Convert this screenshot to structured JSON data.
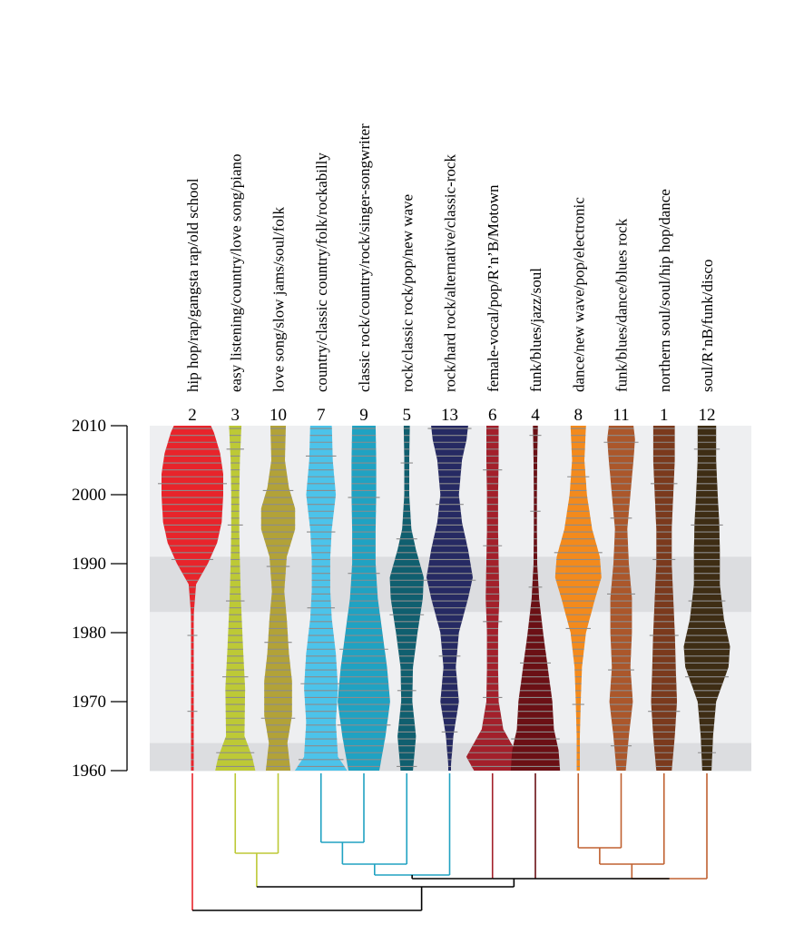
{
  "chart_data": {
    "type": "violin",
    "yticks": [
      1960,
      1970,
      1980,
      1990,
      2000,
      2010
    ],
    "ylim": [
      1960,
      2010
    ],
    "bands": [
      [
        1983,
        1991
      ],
      [
        1960,
        1964
      ]
    ],
    "series": [
      {
        "label": "hip hop/rap/gangsta rap/old school",
        "cluster": "2",
        "color": "#e8242b",
        "profile": [
          [
            1960,
            0.02
          ],
          [
            1970,
            0.03
          ],
          [
            1978,
            0.03
          ],
          [
            1983,
            0.05
          ],
          [
            1987,
            0.12
          ],
          [
            1990,
            0.5
          ],
          [
            1993,
            0.8
          ],
          [
            1996,
            0.95
          ],
          [
            2000,
            1.0
          ],
          [
            2003,
            1.0
          ],
          [
            2006,
            0.9
          ],
          [
            2009,
            0.7
          ],
          [
            2010,
            0.6
          ]
        ]
      },
      {
        "label": "easy listening/country/love song/piano",
        "cluster": "3",
        "color": "#bdc936",
        "profile": [
          [
            1960,
            0.65
          ],
          [
            1962,
            0.55
          ],
          [
            1965,
            0.3
          ],
          [
            1972,
            0.32
          ],
          [
            1978,
            0.25
          ],
          [
            1985,
            0.18
          ],
          [
            1990,
            0.15
          ],
          [
            1995,
            0.13
          ],
          [
            2000,
            0.13
          ],
          [
            2005,
            0.15
          ],
          [
            2010,
            0.2
          ]
        ]
      },
      {
        "label": "love song/slow jams/soul/folk",
        "cluster": "10",
        "color": "#b2a238",
        "profile": [
          [
            1960,
            0.4
          ],
          [
            1964,
            0.3
          ],
          [
            1968,
            0.45
          ],
          [
            1973,
            0.45
          ],
          [
            1977,
            0.35
          ],
          [
            1982,
            0.28
          ],
          [
            1986,
            0.2
          ],
          [
            1991,
            0.28
          ],
          [
            1995,
            0.55
          ],
          [
            1998,
            0.55
          ],
          [
            2001,
            0.35
          ],
          [
            2005,
            0.22
          ],
          [
            2010,
            0.25
          ]
        ]
      },
      {
        "label": "country/classic country/folk/rockabilly",
        "cluster": "7",
        "color": "#4cc3ea",
        "profile": [
          [
            1960,
            0.85
          ],
          [
            1962,
            0.55
          ],
          [
            1967,
            0.48
          ],
          [
            1972,
            0.55
          ],
          [
            1977,
            0.48
          ],
          [
            1982,
            0.35
          ],
          [
            1986,
            0.3
          ],
          [
            1991,
            0.3
          ],
          [
            1995,
            0.35
          ],
          [
            2000,
            0.48
          ],
          [
            2005,
            0.38
          ],
          [
            2010,
            0.35
          ]
        ]
      },
      {
        "label": "classic rock/country/rock/singer-songwriter",
        "cluster": "9",
        "color": "#20a2c2",
        "profile": [
          [
            1960,
            0.5
          ],
          [
            1965,
            0.7
          ],
          [
            1970,
            0.85
          ],
          [
            1975,
            0.75
          ],
          [
            1980,
            0.6
          ],
          [
            1985,
            0.45
          ],
          [
            1990,
            0.38
          ],
          [
            1995,
            0.38
          ],
          [
            2000,
            0.4
          ],
          [
            2005,
            0.4
          ],
          [
            2010,
            0.38
          ]
        ]
      },
      {
        "label": "rock/classic rock/pop/new wave",
        "cluster": "5",
        "color": "#105f6f",
        "profile": [
          [
            1960,
            0.2
          ],
          [
            1965,
            0.3
          ],
          [
            1970,
            0.18
          ],
          [
            1975,
            0.2
          ],
          [
            1980,
            0.35
          ],
          [
            1985,
            0.52
          ],
          [
            1988,
            0.55
          ],
          [
            1992,
            0.3
          ],
          [
            1995,
            0.15
          ],
          [
            2000,
            0.08
          ],
          [
            2005,
            0.08
          ],
          [
            2010,
            0.1
          ]
        ]
      },
      {
        "label": "rock/hard rock/alternative/classic-rock",
        "cluster": "13",
        "color": "#262a63",
        "profile": [
          [
            1960,
            0.03
          ],
          [
            1965,
            0.12
          ],
          [
            1970,
            0.3
          ],
          [
            1975,
            0.2
          ],
          [
            1980,
            0.3
          ],
          [
            1985,
            0.6
          ],
          [
            1988,
            0.75
          ],
          [
            1992,
            0.6
          ],
          [
            1996,
            0.4
          ],
          [
            2000,
            0.3
          ],
          [
            2005,
            0.4
          ],
          [
            2008,
            0.55
          ],
          [
            2010,
            0.6
          ]
        ]
      },
      {
        "label": "female-vocal/pop/R’n’B/Motown",
        "cluster": "6",
        "color": "#a3202b",
        "profile": [
          [
            1960,
            0.6
          ],
          [
            1962,
            0.85
          ],
          [
            1964,
            0.6
          ],
          [
            1966,
            0.35
          ],
          [
            1970,
            0.2
          ],
          [
            1975,
            0.18
          ],
          [
            1980,
            0.18
          ],
          [
            1985,
            0.22
          ],
          [
            1990,
            0.2
          ],
          [
            1995,
            0.18
          ],
          [
            2000,
            0.18
          ],
          [
            2005,
            0.2
          ],
          [
            2010,
            0.2
          ]
        ]
      },
      {
        "label": "funk/blues/jazz/soul",
        "cluster": "4",
        "color": "#6b1015",
        "profile": [
          [
            1960,
            0.8
          ],
          [
            1963,
            0.75
          ],
          [
            1966,
            0.6
          ],
          [
            1970,
            0.55
          ],
          [
            1975,
            0.4
          ],
          [
            1980,
            0.25
          ],
          [
            1985,
            0.12
          ],
          [
            1990,
            0.06
          ],
          [
            1995,
            0.05
          ],
          [
            2000,
            0.05
          ],
          [
            2005,
            0.06
          ],
          [
            2010,
            0.08
          ]
        ]
      },
      {
        "label": "dance/new wave/pop/electronic",
        "cluster": "8",
        "color": "#f38a1c",
        "profile": [
          [
            1960,
            0.05
          ],
          [
            1965,
            0.05
          ],
          [
            1970,
            0.08
          ],
          [
            1975,
            0.12
          ],
          [
            1980,
            0.25
          ],
          [
            1985,
            0.55
          ],
          [
            1988,
            0.75
          ],
          [
            1991,
            0.7
          ],
          [
            1995,
            0.45
          ],
          [
            2000,
            0.28
          ],
          [
            2005,
            0.2
          ],
          [
            2010,
            0.25
          ]
        ]
      },
      {
        "label": "funk/blues/dance/blues rock",
        "cluster": "11",
        "color": "#ab572b",
        "profile": [
          [
            1960,
            0.15
          ],
          [
            1965,
            0.25
          ],
          [
            1970,
            0.38
          ],
          [
            1975,
            0.3
          ],
          [
            1980,
            0.35
          ],
          [
            1985,
            0.35
          ],
          [
            1990,
            0.25
          ],
          [
            1995,
            0.2
          ],
          [
            2000,
            0.3
          ],
          [
            2005,
            0.4
          ],
          [
            2008,
            0.45
          ],
          [
            2010,
            0.4
          ]
        ]
      },
      {
        "label": "northern soul/soul/hip hop/dance",
        "cluster": "1",
        "color": "#7b3a1d",
        "profile": [
          [
            1960,
            0.25
          ],
          [
            1965,
            0.35
          ],
          [
            1970,
            0.42
          ],
          [
            1975,
            0.38
          ],
          [
            1980,
            0.35
          ],
          [
            1985,
            0.3
          ],
          [
            1990,
            0.25
          ],
          [
            1995,
            0.25
          ],
          [
            2000,
            0.3
          ],
          [
            2005,
            0.35
          ],
          [
            2010,
            0.35
          ]
        ]
      },
      {
        "label": "soul/R’nB/funk/disco",
        "cluster": "12",
        "color": "#3e2d14",
        "profile": [
          [
            1960,
            0.15
          ],
          [
            1965,
            0.2
          ],
          [
            1970,
            0.3
          ],
          [
            1975,
            0.7
          ],
          [
            1978,
            0.75
          ],
          [
            1982,
            0.55
          ],
          [
            1987,
            0.42
          ],
          [
            1992,
            0.42
          ],
          [
            1996,
            0.4
          ],
          [
            2000,
            0.35
          ],
          [
            2005,
            0.3
          ],
          [
            2010,
            0.3
          ]
        ]
      }
    ],
    "dendrogram": {
      "clusters": [
        {
          "members": [
            "3",
            "10"
          ],
          "color": "#bdc936"
        },
        {
          "members": [
            "7",
            "9"
          ],
          "color": "#20a2c2"
        },
        {
          "members": [
            "7",
            "9",
            "5"
          ],
          "color": "#20a2c2"
        },
        {
          "members": [
            "7",
            "9",
            "5",
            "13"
          ],
          "color": "#20a2c2"
        },
        {
          "members": [
            "8",
            "11"
          ],
          "color": "#c06030"
        },
        {
          "members": [
            "8",
            "11",
            "1"
          ],
          "color": "#c06030"
        },
        {
          "members": [
            "8",
            "11",
            "1",
            "12"
          ],
          "color": "#c06030"
        }
      ],
      "root_color": "#000000"
    }
  }
}
